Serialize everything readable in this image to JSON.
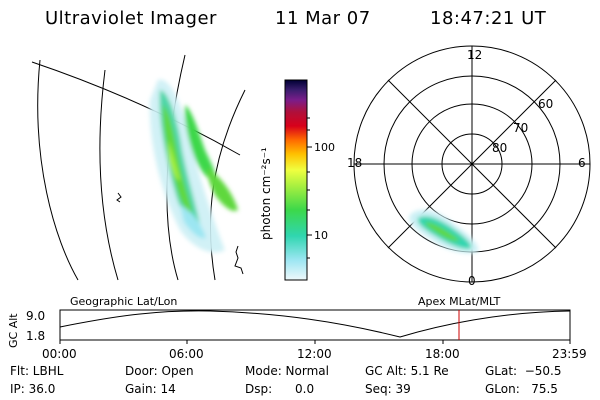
{
  "header": {
    "title": "Ultraviolet Imager",
    "date": "11 Mar 07",
    "time": "18:47:21 UT"
  },
  "colorbar": {
    "label": "photon cm⁻²s⁻¹",
    "ticks": [
      "100",
      "10"
    ],
    "colors": [
      "#000033",
      "#3a1d6e",
      "#7a1d8a",
      "#b0103a",
      "#d8001a",
      "#ff6a00",
      "#ffc000",
      "#f0ff40",
      "#a8f040",
      "#3cd84a",
      "#30d6b0",
      "#80e0f0",
      "#e6f6fa"
    ]
  },
  "polar_plot": {
    "hour_labels": [
      "12",
      "18",
      "6",
      "0"
    ],
    "lat_labels": [
      "60",
      "70",
      "80"
    ]
  },
  "timeline": {
    "left_label": "Geographic Lat/Lon",
    "right_label": "Apex MLat/MLT",
    "axis_label": "GC Alt",
    "y_ticks": [
      "9.0",
      "1.8"
    ],
    "x_ticks": [
      "00:00",
      "06:00",
      "12:00",
      "18:00",
      "23:59"
    ],
    "marker_color": "#cc0000"
  },
  "status": {
    "flt": "Flt: LBHL",
    "ip": "IP: 36.0",
    "door": "Door: Open",
    "gain": "Gain: 14",
    "mode": "Mode: Normal",
    "dsp": "Dsp:      0.0",
    "gcalt": "GC Alt: 5.1 Re",
    "seq": "Seq: 39",
    "glat": "GLat:  −50.5",
    "glon": "GLon:   75.5"
  }
}
